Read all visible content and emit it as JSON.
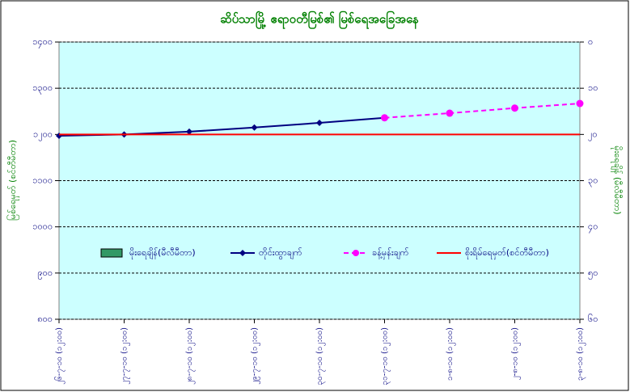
{
  "chart_data": {
    "type": "line",
    "title": "ဆိပ်သာမြို့ ဧရာဝတီမြစ်၏ မြစ်ရေအခြေအနေ",
    "y_label": "မြစ်ရေမှတ် (စင်တီမီတာ)",
    "y2_label": "မိုးရေချိန် (မီလီမီတာ)",
    "categories": [
      "၂၆-၇-၁၀ (၁၂:၀၀)",
      "၂၇-၇-၁၀ (၁၂:၀၀)",
      "၂၈-၇-၁၀ (၁၂:၀၀)",
      "၂၉-၇-၁၀ (၁၂:၀၀)",
      "၃၀-၇-၁၀ (၁၂:၀၀)",
      "၃၁-၇-၁၀ (၁၂:၀၀)",
      "၁-၈-၁၀ (၁၂:၀၀)",
      "၂-၈-၁၀ (၁၂:၀၀)",
      "၃-၈-၁၀ (၁၂:၀၀)"
    ],
    "series": [
      {
        "name": "မိုးရေချိန်(မီလီမီတာ)",
        "color": "#339966",
        "kind": "bar",
        "axis": "y2",
        "values": [
          null,
          null,
          null,
          null,
          null,
          null,
          null,
          null,
          null
        ]
      },
      {
        "name": "တိုင်းထွာချက်",
        "color": "#000080",
        "kind": "line",
        "values": [
          1197,
          1200,
          1206,
          1215,
          1225,
          1236,
          null,
          null,
          null
        ]
      },
      {
        "name": "ခန့်မှန်းချက်",
        "color": "#ff00ff",
        "kind": "dashed",
        "values": [
          null,
          null,
          null,
          null,
          null,
          1236,
          1246,
          1257,
          1267
        ]
      },
      {
        "name": "စိုးရိမ်ရေမှတ်(စင်တီမီတာ)",
        "color": "#ff0000",
        "kind": "plain",
        "values": [
          1200,
          1200,
          1200,
          1200,
          1200,
          1200,
          1200,
          1200,
          1200
        ]
      }
    ],
    "ylim": [
      800,
      1400
    ],
    "yticks": [
      {
        "value": 800,
        "label": "၈၀၀"
      },
      {
        "value": 900,
        "label": "၉၀၀"
      },
      {
        "value": 1000,
        "label": "၁၀၀၀"
      },
      {
        "value": 1100,
        "label": "၁၁၀၀"
      },
      {
        "value": 1200,
        "label": "၁၂၀၀"
      },
      {
        "value": 1300,
        "label": "၁၃၀၀"
      },
      {
        "value": 1400,
        "label": "၁၄၀၀"
      }
    ],
    "y2lim": [
      60,
      0
    ],
    "y2ticks": [
      {
        "value": 0,
        "label": "၀"
      },
      {
        "value": 10,
        "label": "၁၀"
      },
      {
        "value": 20,
        "label": "၂၀"
      },
      {
        "value": 30,
        "label": "၃၀"
      },
      {
        "value": 40,
        "label": "၄၀"
      },
      {
        "value": 50,
        "label": "၅၀"
      },
      {
        "value": 60,
        "label": "၆၀"
      }
    ],
    "grid": true,
    "legend": "center",
    "plot_background": "#ccffff"
  }
}
